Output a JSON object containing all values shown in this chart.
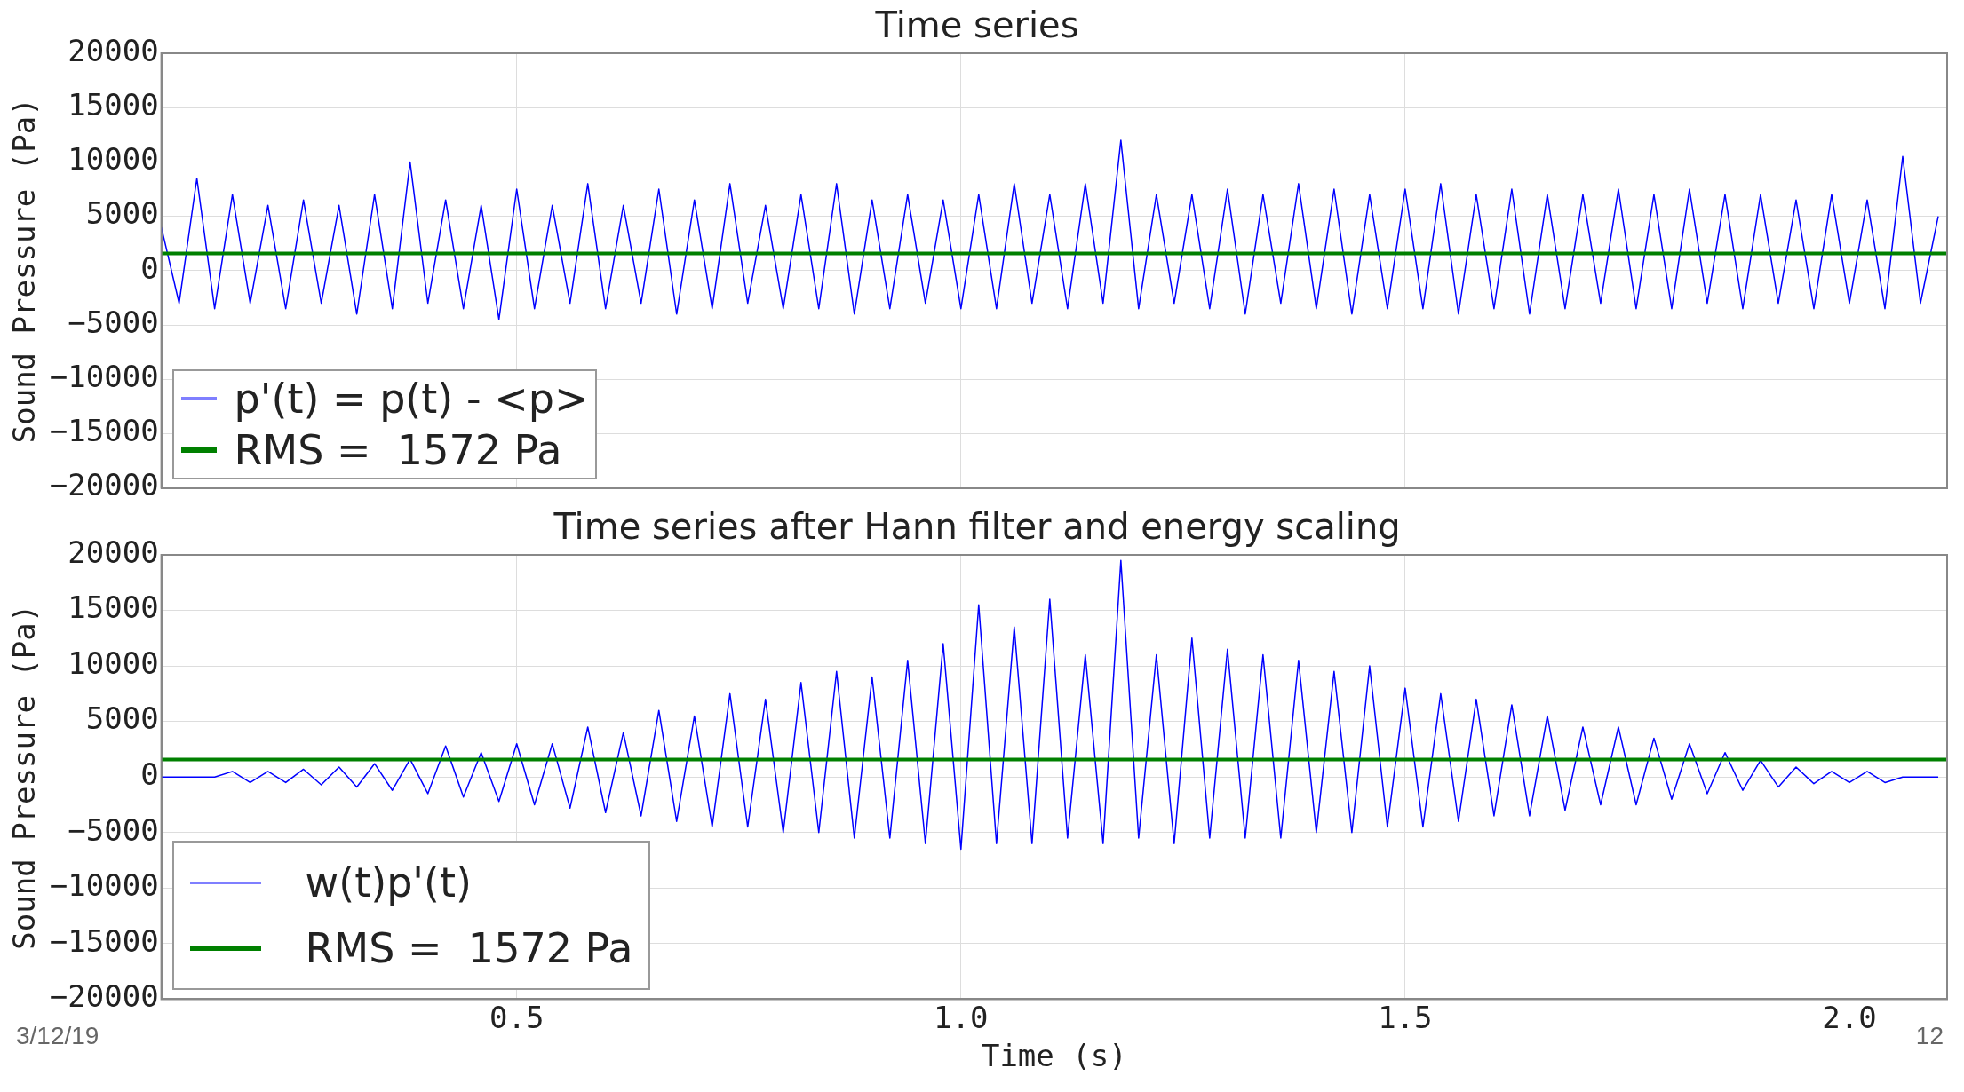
{
  "chart_data": [
    {
      "type": "line",
      "title": "Time series",
      "ylabel": "Sound Pressure (Pa)",
      "xlim": [
        0.1,
        2.11
      ],
      "xticks": [
        0.5,
        1.0,
        1.5,
        2.0
      ],
      "ylim": [
        -20000,
        20000
      ],
      "yticks": [
        -20000,
        -15000,
        -10000,
        -5000,
        0,
        5000,
        10000,
        15000,
        20000
      ],
      "grid": true,
      "legend": "bottom left",
      "tick_labels": "y",
      "x": [
        0.1,
        0.12,
        0.14,
        0.16,
        0.18,
        0.2,
        0.22,
        0.24,
        0.26,
        0.28,
        0.3,
        0.32,
        0.34,
        0.36,
        0.38,
        0.4,
        0.42,
        0.44,
        0.46,
        0.48,
        0.5,
        0.52,
        0.54,
        0.56,
        0.58,
        0.6,
        0.62,
        0.64,
        0.66,
        0.68,
        0.7,
        0.72,
        0.74,
        0.76,
        0.78,
        0.8,
        0.82,
        0.84,
        0.86,
        0.88,
        0.9,
        0.92,
        0.94,
        0.96,
        0.98,
        1.0,
        1.02,
        1.04,
        1.06,
        1.08,
        1.1,
        1.12,
        1.14,
        1.16,
        1.18,
        1.2,
        1.22,
        1.24,
        1.26,
        1.28,
        1.3,
        1.32,
        1.34,
        1.36,
        1.38,
        1.4,
        1.42,
        1.44,
        1.46,
        1.48,
        1.5,
        1.52,
        1.54,
        1.56,
        1.58,
        1.6,
        1.62,
        1.64,
        1.66,
        1.68,
        1.7,
        1.72,
        1.74,
        1.76,
        1.78,
        1.8,
        1.82,
        1.84,
        1.86,
        1.88,
        1.9,
        1.92,
        1.94,
        1.96,
        1.98,
        2.0,
        2.02,
        2.04,
        2.06,
        2.08,
        2.1
      ],
      "series": [
        {
          "name": "p'(t) = p(t) - <p>",
          "color": "#0000ff",
          "values": [
            4000,
            -3000,
            8500,
            -3500,
            7000,
            -3000,
            6000,
            -3500,
            6500,
            -3000,
            6000,
            -4000,
            7000,
            -3500,
            10000,
            -3000,
            6500,
            -3500,
            6000,
            -4500,
            7500,
            -3500,
            6000,
            -3000,
            8000,
            -3500,
            6000,
            -3000,
            7500,
            -4000,
            6500,
            -3500,
            8000,
            -3000,
            6000,
            -3500,
            7000,
            -3500,
            8000,
            -4000,
            6500,
            -3500,
            7000,
            -3000,
            6500,
            -3500,
            7000,
            -3500,
            8000,
            -3000,
            7000,
            -3500,
            8000,
            -3000,
            12000,
            -3500,
            7000,
            -3000,
            7000,
            -3500,
            7500,
            -4000,
            7000,
            -3000,
            8000,
            -3500,
            7500,
            -4000,
            7000,
            -3500,
            7500,
            -3500,
            8000,
            -4000,
            7000,
            -3500,
            7500,
            -4000,
            7000,
            -3500,
            7000,
            -3000,
            7500,
            -3500,
            7000,
            -3500,
            7500,
            -3000,
            7000,
            -3500,
            7000,
            -3000,
            6500,
            -3500,
            7000,
            -3000,
            6500,
            -3500,
            10500,
            -3000,
            5000
          ]
        }
      ],
      "ref_lines": [
        {
          "axis": "y",
          "value": 1572,
          "label": "RMS =  1572 Pa",
          "color": "#008000"
        }
      ]
    },
    {
      "type": "line",
      "title": "Time series after Hann filter and energy scaling",
      "xlabel": "Time (s)",
      "ylabel": "Sound Pressure (Pa)",
      "xlim": [
        0.1,
        2.11
      ],
      "xticks": [
        {
          "value": 0.5,
          "label": "0.5"
        },
        {
          "value": 1.0,
          "label": "1.0"
        },
        {
          "value": 1.5,
          "label": "1.5"
        },
        {
          "value": 2.0,
          "label": "2.0"
        }
      ],
      "ylim": [
        -20000,
        20000
      ],
      "yticks": [
        -20000,
        -15000,
        -10000,
        -5000,
        0,
        5000,
        10000,
        15000,
        20000
      ],
      "grid": true,
      "legend": "bottom left",
      "annotations": [
        "3/12/19",
        "12"
      ],
      "x": [
        0.1,
        0.12,
        0.14,
        0.16,
        0.18,
        0.2,
        0.22,
        0.24,
        0.26,
        0.28,
        0.3,
        0.32,
        0.34,
        0.36,
        0.38,
        0.4,
        0.42,
        0.44,
        0.46,
        0.48,
        0.5,
        0.52,
        0.54,
        0.56,
        0.58,
        0.6,
        0.62,
        0.64,
        0.66,
        0.68,
        0.7,
        0.72,
        0.74,
        0.76,
        0.78,
        0.8,
        0.82,
        0.84,
        0.86,
        0.88,
        0.9,
        0.92,
        0.94,
        0.96,
        0.98,
        1.0,
        1.02,
        1.04,
        1.06,
        1.08,
        1.1,
        1.12,
        1.14,
        1.16,
        1.18,
        1.2,
        1.22,
        1.24,
        1.26,
        1.28,
        1.3,
        1.32,
        1.34,
        1.36,
        1.38,
        1.4,
        1.42,
        1.44,
        1.46,
        1.48,
        1.5,
        1.52,
        1.54,
        1.56,
        1.58,
        1.6,
        1.62,
        1.64,
        1.66,
        1.68,
        1.7,
        1.72,
        1.74,
        1.76,
        1.78,
        1.8,
        1.82,
        1.84,
        1.86,
        1.88,
        1.9,
        1.92,
        1.94,
        1.96,
        1.98,
        2.0,
        2.02,
        2.04,
        2.06,
        2.08,
        2.1
      ],
      "series": [
        {
          "name": "w(t)p'(t)",
          "color": "#0000ff",
          "values": [
            0,
            0,
            0,
            0,
            500,
            -500,
            500,
            -500,
            700,
            -700,
            900,
            -900,
            1200,
            -1200,
            1600,
            -1500,
            2800,
            -1800,
            2200,
            -2200,
            3000,
            -2500,
            3000,
            -2800,
            4500,
            -3200,
            4000,
            -3500,
            6000,
            -4000,
            5500,
            -4500,
            7500,
            -4500,
            7000,
            -5000,
            8500,
            -5000,
            9500,
            -5500,
            9000,
            -5500,
            10500,
            -6000,
            12000,
            -6500,
            15500,
            -6000,
            13500,
            -6000,
            16000,
            -5500,
            11000,
            -6000,
            19500,
            -5500,
            11000,
            -6000,
            12500,
            -5500,
            11500,
            -5500,
            11000,
            -5500,
            10500,
            -5000,
            9500,
            -5000,
            10000,
            -4500,
            8000,
            -4500,
            7500,
            -4000,
            7000,
            -3500,
            6500,
            -3500,
            5500,
            -3000,
            4500,
            -2500,
            4500,
            -2500,
            3500,
            -2000,
            3000,
            -1500,
            2200,
            -1200,
            1500,
            -900,
            900,
            -600,
            500,
            -500,
            500,
            -500,
            0,
            0,
            0
          ]
        }
      ],
      "ref_lines": [
        {
          "axis": "y",
          "value": 1572,
          "label": "RMS =  1572 Pa",
          "color": "#008000"
        }
      ]
    }
  ]
}
